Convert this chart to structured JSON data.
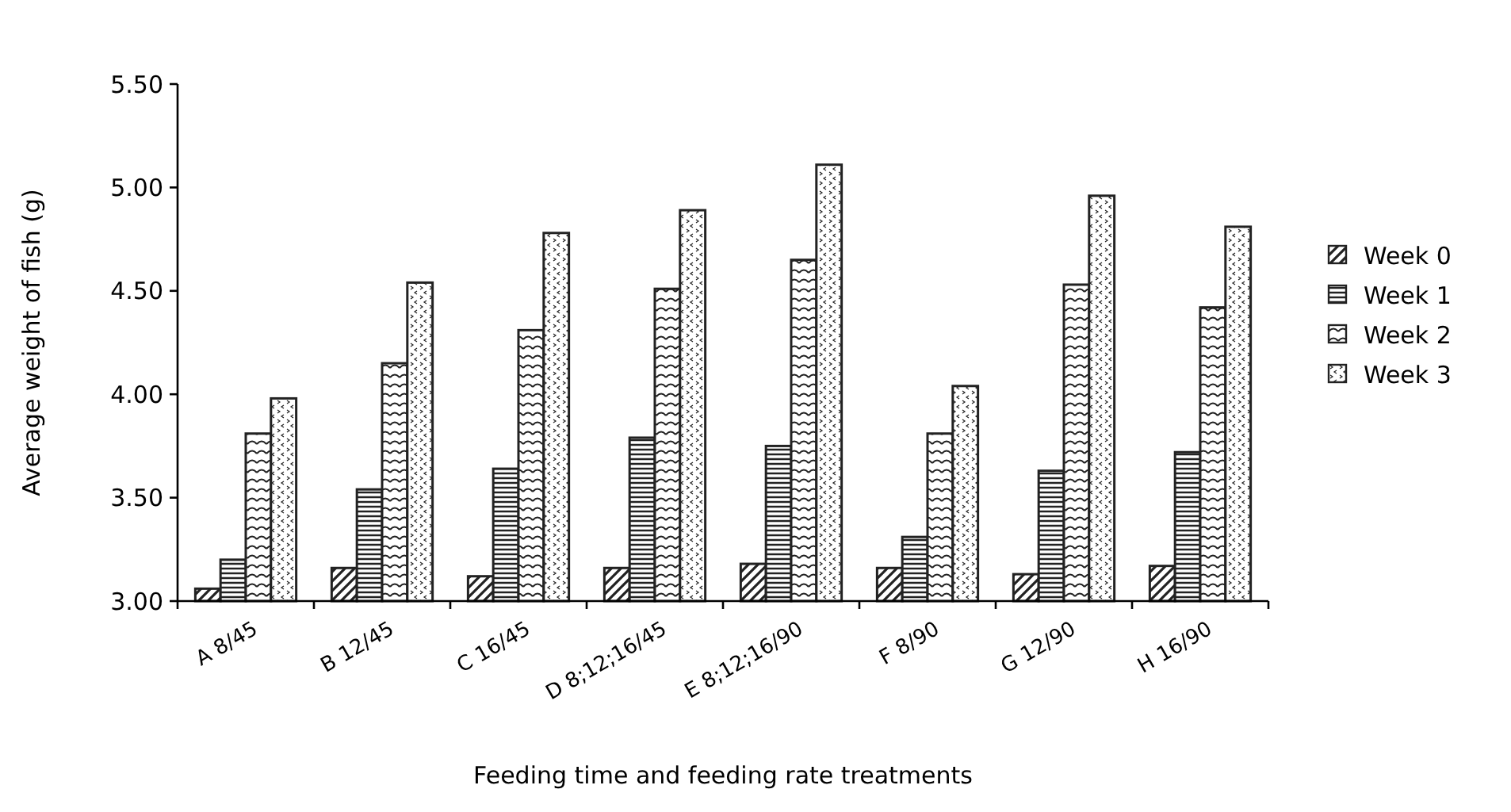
{
  "chart_data": {
    "type": "bar",
    "xlabel": "Feeding time and feeding rate treatments",
    "ylabel": "Average weight of fish (g)",
    "categories": [
      "A 8/45",
      "B 12/45",
      "C 16/45",
      "D 8;12;16/45",
      "E 8;12;16/90",
      "F 8/90",
      "G 12/90",
      "H 16/90"
    ],
    "series": [
      {
        "name": "Week 0",
        "color": "#222222",
        "values": [
          3.06,
          3.16,
          3.12,
          3.16,
          3.18,
          3.16,
          3.13,
          3.17
        ]
      },
      {
        "name": "Week 1",
        "color": "#222222",
        "values": [
          3.2,
          3.54,
          3.64,
          3.79,
          3.75,
          3.31,
          3.63,
          3.72
        ]
      },
      {
        "name": "Week 2",
        "color": "#222222",
        "values": [
          3.81,
          4.15,
          4.31,
          4.51,
          4.65,
          3.81,
          4.53,
          4.42
        ]
      },
      {
        "name": "Week 3",
        "color": "#222222",
        "values": [
          3.98,
          4.54,
          4.78,
          4.89,
          5.11,
          4.04,
          4.96,
          4.81
        ]
      }
    ],
    "ylim": [
      3,
      5.5
    ],
    "yticks": [
      {
        "value": 3,
        "label": "3.00"
      },
      {
        "value": 3.5,
        "label": "3.50"
      },
      {
        "value": 4,
        "label": "4.00"
      },
      {
        "value": 4.5,
        "label": "4.50"
      },
      {
        "value": 5,
        "label": "5.00"
      },
      {
        "value": 5.5,
        "label": "5.50"
      }
    ],
    "legend": "right",
    "grid": false
  }
}
